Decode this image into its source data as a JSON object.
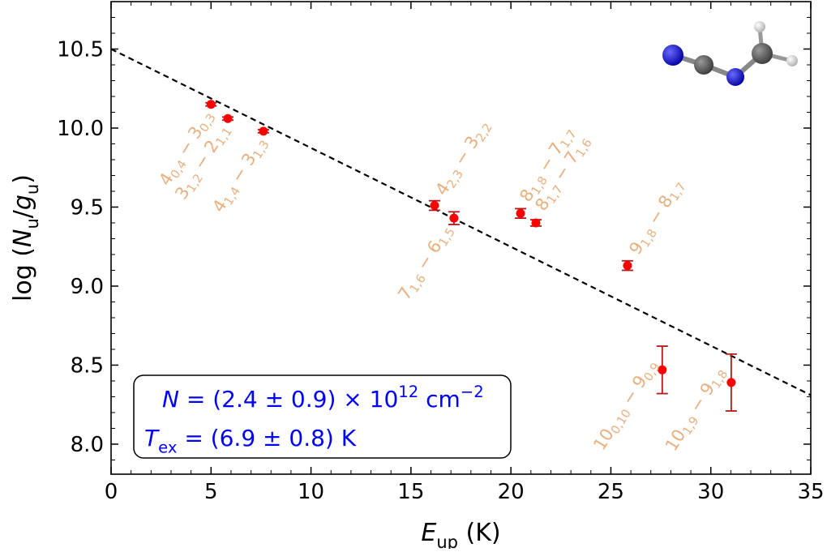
{
  "chart_data": {
    "type": "scatter",
    "x_label": [
      {
        "text": "E",
        "style": "italic"
      },
      {
        "text": "up",
        "style": "sub"
      },
      {
        "text": " (K)"
      }
    ],
    "y_label": [
      {
        "text": "log ("
      },
      {
        "text": "N",
        "style": "italic"
      },
      {
        "text": "u",
        "style": "sub"
      },
      {
        "text": "/"
      },
      {
        "text": "g",
        "style": "italic"
      },
      {
        "text": "u",
        "style": "sub"
      },
      {
        "text": ")"
      }
    ],
    "xlim": [
      0,
      35
    ],
    "xticks": [
      0,
      5,
      10,
      15,
      20,
      25,
      30,
      35
    ],
    "ylim": [
      7.81,
      10.8
    ],
    "yticks": [
      {
        "value": 8,
        "label": "8.0"
      },
      8.5,
      {
        "value": 9,
        "label": "9.0"
      },
      9.5,
      {
        "value": 10,
        "label": "10.0"
      },
      10.5
    ],
    "series": [
      {
        "color": "#ff0000",
        "error_color": "#b01818",
        "label_color": "#e8b07f",
        "x": [
          5.0,
          5.84,
          7.62,
          16.18,
          17.15,
          20.48,
          21.25,
          25.83,
          27.57,
          31.02
        ],
        "values": [
          10.15,
          10.06,
          9.98,
          9.51,
          9.43,
          9.46,
          9.4,
          9.13,
          8.47,
          8.39
        ],
        "errors": [
          0.01,
          0.01,
          0.01,
          0.03,
          0.04,
          0.03,
          0.02,
          0.03,
          0.15,
          0.18
        ],
        "labels": [
          [
            {
              "text": "4"
            },
            {
              "text": "0,4",
              "style": "sub"
            },
            {
              "text": " − 3"
            },
            {
              "text": "0,3",
              "style": "sub"
            }
          ],
          [
            {
              "text": "3"
            },
            {
              "text": "1,2",
              "style": "sub"
            },
            {
              "text": " − 2"
            },
            {
              "text": "1,1",
              "style": "sub"
            }
          ],
          [
            {
              "text": "4"
            },
            {
              "text": "1,4",
              "style": "sub"
            },
            {
              "text": " − 3"
            },
            {
              "text": "1,3",
              "style": "sub"
            }
          ],
          [
            {
              "text": "4"
            },
            {
              "text": "2,3",
              "style": "sub"
            },
            {
              "text": " − 3"
            },
            {
              "text": "2,2",
              "style": "sub"
            }
          ],
          [
            {
              "text": "7"
            },
            {
              "text": "1,6",
              "style": "sub"
            },
            {
              "text": " − 6"
            },
            {
              "text": "1,5",
              "style": "sub"
            }
          ],
          [
            {
              "text": "8"
            },
            {
              "text": "1,8",
              "style": "sub"
            },
            {
              "text": " − 7"
            },
            {
              "text": "1,7",
              "style": "sub"
            }
          ],
          [
            {
              "text": "8"
            },
            {
              "text": "1,7",
              "style": "sub"
            },
            {
              "text": " − 7"
            },
            {
              "text": "1,6",
              "style": "sub"
            }
          ],
          [
            {
              "text": "9"
            },
            {
              "text": "1,8",
              "style": "sub"
            },
            {
              "text": " − 8"
            },
            {
              "text": "1,7",
              "style": "sub"
            }
          ],
          [
            {
              "text": "10"
            },
            {
              "text": "0,10",
              "style": "sub"
            },
            {
              "text": " − 9"
            },
            {
              "text": "0,9",
              "style": "sub"
            }
          ],
          [
            {
              "text": "10"
            },
            {
              "text": "1,9",
              "style": "sub"
            },
            {
              "text": " − 9"
            },
            {
              "text": "1,8",
              "style": "sub"
            }
          ]
        ]
      }
    ],
    "fit_line": {
      "x": [
        0,
        35
      ],
      "values": [
        10.5,
        8.31
      ],
      "color": "#000000",
      "dashed": true
    },
    "box_color": "#0000ff",
    "box_text": [
      [
        {
          "text": "N",
          "style": "italic"
        },
        {
          "text": " = (2.4 ± 0.9) × 10"
        },
        {
          "text": "12",
          "style": "sup"
        },
        {
          "text": " cm"
        },
        {
          "text": "−2",
          "style": "sup"
        }
      ],
      [
        {
          "text": "T",
          "style": "italic"
        },
        {
          "text": "ex",
          "style": "sub"
        },
        {
          "text": " = (6.9 ± 0.8) K"
        }
      ]
    ]
  }
}
